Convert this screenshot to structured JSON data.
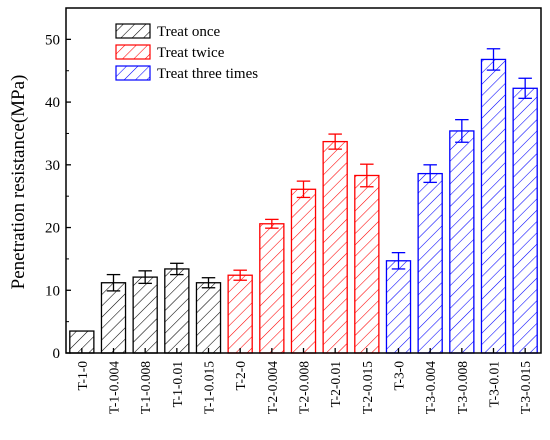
{
  "chart_data": {
    "type": "bar",
    "ylabel": "Penetration resistance(MPa)",
    "ylim": [
      0,
      55
    ],
    "yticks": [
      0,
      10,
      20,
      30,
      40,
      50
    ],
    "grid": false,
    "legend_position": "top-left",
    "categories": [
      "T-1-0",
      "T-1-0.004",
      "T-1-0.008",
      "T-1-0.01",
      "T-1-0.015",
      "T-2-0",
      "T-2-0.004",
      "T-2-0.008",
      "T-2-0.01",
      "T-2-0.015",
      "T-3-0",
      "T-3-0.004",
      "T-3-0.008",
      "T-3-0.01",
      "T-3-0.015"
    ],
    "series": [
      {
        "name": "Treat once",
        "color": "#000000",
        "values": [
          3.5,
          11.2,
          12.1,
          13.4,
          11.2,
          null,
          null,
          null,
          null,
          null,
          null,
          null,
          null,
          null,
          null
        ],
        "errors": [
          0,
          1.3,
          1.0,
          0.9,
          0.8,
          null,
          null,
          null,
          null,
          null,
          null,
          null,
          null,
          null,
          null
        ]
      },
      {
        "name": "Treat twice",
        "color": "#ff0000",
        "values": [
          null,
          null,
          null,
          null,
          null,
          12.4,
          20.6,
          26.1,
          33.7,
          28.3,
          null,
          null,
          null,
          null,
          null
        ],
        "errors": [
          null,
          null,
          null,
          null,
          null,
          0.8,
          0.7,
          1.3,
          1.2,
          1.8,
          null,
          null,
          null,
          null,
          null
        ]
      },
      {
        "name": "Treat three times",
        "color": "#0000ff",
        "values": [
          null,
          null,
          null,
          null,
          null,
          null,
          null,
          null,
          null,
          null,
          14.7,
          28.6,
          35.4,
          46.8,
          42.2
        ],
        "errors": [
          null,
          null,
          null,
          null,
          null,
          null,
          null,
          null,
          null,
          null,
          1.3,
          1.4,
          1.8,
          1.7,
          1.6
        ]
      }
    ]
  }
}
